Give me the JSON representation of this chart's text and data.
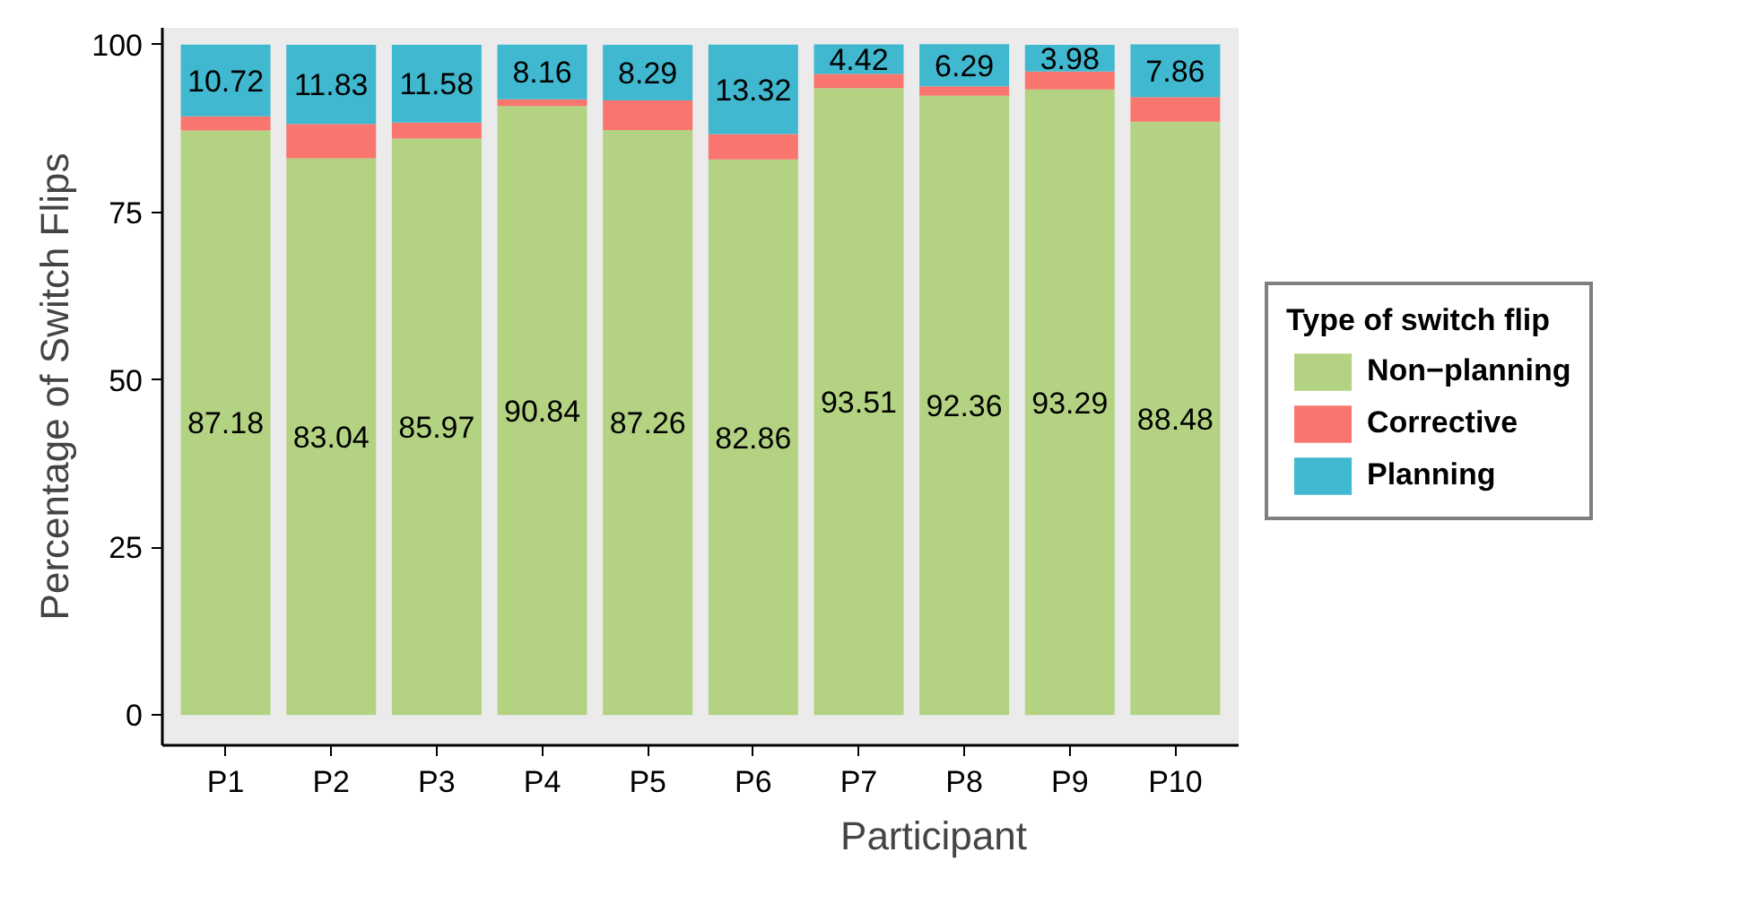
{
  "chart_data": {
    "type": "bar",
    "stacked": true,
    "xlabel": "Participant",
    "ylabel": "Percentage of Switch Flips",
    "legend_title": "Type of switch flip",
    "legend": "right",
    "categories": [
      "P1",
      "P2",
      "P3",
      "P4",
      "P5",
      "P6",
      "P7",
      "P8",
      "P9",
      "P10"
    ],
    "ylim": [
      -4.5,
      102.5
    ],
    "yticks": [
      0,
      25,
      50,
      75,
      100
    ],
    "series": [
      {
        "name": "Non−planning",
        "color": "#b3d382",
        "values": [
          87.18,
          83.04,
          85.97,
          90.84,
          87.26,
          82.86,
          93.51,
          92.36,
          93.29,
          88.48
        ],
        "value_labels": [
          "87.18",
          "83.04",
          "85.97",
          "90.84",
          "87.26",
          "82.86",
          "93.51",
          "92.36",
          "93.29",
          "88.48"
        ]
      },
      {
        "name": "Corrective",
        "color": "#f8766d",
        "values": [
          2.1,
          5.1,
          2.4,
          1.0,
          4.4,
          3.8,
          2.1,
          1.4,
          2.7,
          3.7
        ]
      },
      {
        "name": "Planning",
        "color": "#3fb8d0",
        "values": [
          10.72,
          11.83,
          11.58,
          8.16,
          8.29,
          13.32,
          4.42,
          6.29,
          3.98,
          7.86
        ],
        "value_labels": [
          "10.72",
          "11.83",
          "11.58",
          "8.16",
          "8.29",
          "13.32",
          "4.42",
          "6.29",
          "3.98",
          "7.86"
        ]
      }
    ]
  }
}
